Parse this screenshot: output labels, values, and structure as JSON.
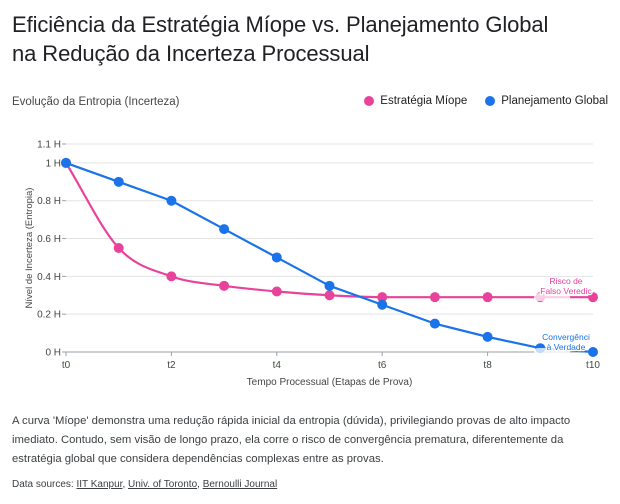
{
  "title_line1": "Eficiência da Estratégia Míope vs. Planejamento Global",
  "title_line2": "na Redução da Incerteza Processual",
  "subtitle": "Evolução da Entropia (Incerteza)",
  "description": "A curva 'Míope' demonstra uma redução rápida inicial da entropia (dúvida), privilegiando provas de alto impacto imediato. Contudo, sem visão de longo prazo, ela corre o risco de convergência prematura, diferentemente da estratégia global que considera dependências complexas entre as provas.",
  "sources": {
    "prefix": "Data sources:",
    "items": [
      "IIT Kanpur",
      "Univ. of Toronto",
      "Bernoulli Journal"
    ],
    "sep1": ", ",
    "sep2": ", "
  },
  "colors": {
    "miope": "#e8429a",
    "global": "#1a73e8"
  },
  "chart_data": {
    "type": "line",
    "xlabel": "Tempo Processual (Etapas de Prova)",
    "ylabel": "Nível de Incerteza (Entropia)",
    "x": [
      0,
      1,
      2,
      3,
      4,
      5,
      6,
      7,
      8,
      9,
      10
    ],
    "xticks": [
      0,
      2,
      4,
      6,
      8,
      10
    ],
    "xtick_labels": [
      "t0",
      "t2",
      "t4",
      "t6",
      "t8",
      "t10"
    ],
    "yticks": [
      0,
      0.2,
      0.4,
      0.6,
      0.8,
      1,
      1.1
    ],
    "ytick_labels": [
      "0 H",
      "0.2 H",
      "0.4 H",
      "0.6 H",
      "0.8 H",
      "1 H",
      "1.1 H"
    ],
    "xlim": [
      0,
      10
    ],
    "ylim": [
      0,
      1.1
    ],
    "grid": true,
    "legend_position": "top-right",
    "series": [
      {
        "name": "Estratégia Míope",
        "color": "#e8429a",
        "smooth": true,
        "values": [
          1.0,
          0.55,
          0.4,
          0.35,
          0.32,
          0.3,
          0.29,
          0.29,
          0.29,
          0.29,
          0.29
        ]
      },
      {
        "name": "Planejamento Global",
        "color": "#1a73e8",
        "smooth": false,
        "values": [
          1.0,
          0.9,
          0.8,
          0.65,
          0.5,
          0.35,
          0.25,
          0.15,
          0.08,
          0.02,
          0.0
        ]
      }
    ],
    "annotations": [
      {
        "series": 0,
        "x": 10,
        "y": 0.29,
        "lines": [
          "Risco de",
          "Falso Veredic"
        ]
      },
      {
        "series": 1,
        "x": 10,
        "y": 0.0,
        "lines": [
          "Convergênci",
          "à Verdade"
        ]
      }
    ]
  }
}
